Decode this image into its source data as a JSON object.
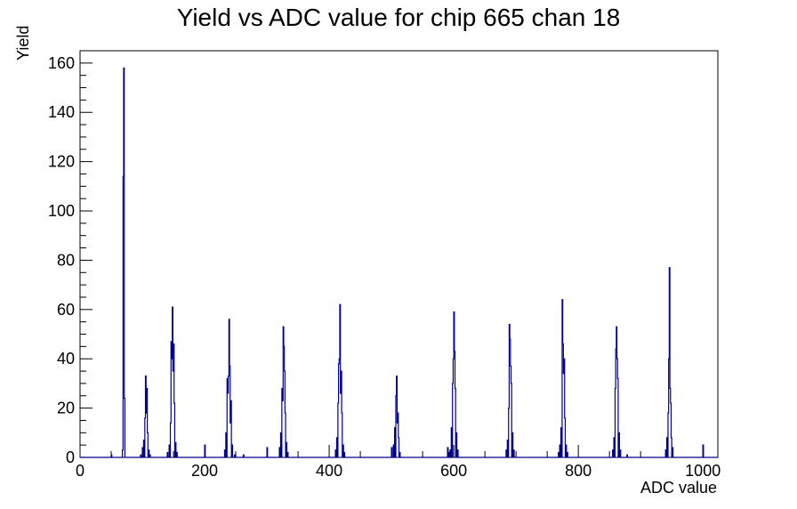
{
  "chart_data": {
    "type": "histogram",
    "title": "Yield vs ADC value for chip 665 chan 18",
    "xlabel": "ADC value",
    "ylabel": "Yield",
    "xlim": [
      0,
      1024
    ],
    "ylim": [
      0,
      165
    ],
    "x_ticks": [
      0,
      200,
      400,
      600,
      800,
      1000
    ],
    "y_ticks": [
      0,
      20,
      40,
      60,
      80,
      100,
      120,
      140,
      160
    ],
    "grid": false,
    "line_color": "#00008b",
    "bins": [
      {
        "x": 50,
        "y": 1
      },
      {
        "x": 68,
        "y": 3
      },
      {
        "x": 69,
        "y": 114
      },
      {
        "x": 70,
        "y": 158
      },
      {
        "x": 71,
        "y": 24
      },
      {
        "x": 97,
        "y": 1
      },
      {
        "x": 100,
        "y": 4
      },
      {
        "x": 102,
        "y": 7
      },
      {
        "x": 104,
        "y": 16
      },
      {
        "x": 105,
        "y": 33
      },
      {
        "x": 106,
        "y": 18
      },
      {
        "x": 107,
        "y": 28
      },
      {
        "x": 108,
        "y": 10
      },
      {
        "x": 110,
        "y": 3
      },
      {
        "x": 112,
        "y": 1
      },
      {
        "x": 140,
        "y": 2
      },
      {
        "x": 143,
        "y": 5
      },
      {
        "x": 145,
        "y": 14
      },
      {
        "x": 146,
        "y": 47
      },
      {
        "x": 147,
        "y": 40
      },
      {
        "x": 148,
        "y": 61
      },
      {
        "x": 149,
        "y": 35
      },
      {
        "x": 150,
        "y": 46
      },
      {
        "x": 151,
        "y": 22
      },
      {
        "x": 153,
        "y": 6
      },
      {
        "x": 155,
        "y": 2
      },
      {
        "x": 200,
        "y": 5
      },
      {
        "x": 232,
        "y": 3
      },
      {
        "x": 234,
        "y": 10
      },
      {
        "x": 236,
        "y": 32
      },
      {
        "x": 237,
        "y": 26
      },
      {
        "x": 238,
        "y": 33
      },
      {
        "x": 239,
        "y": 56
      },
      {
        "x": 240,
        "y": 37
      },
      {
        "x": 241,
        "y": 14
      },
      {
        "x": 242,
        "y": 23
      },
      {
        "x": 244,
        "y": 5
      },
      {
        "x": 248,
        "y": 1
      },
      {
        "x": 262,
        "y": 1
      },
      {
        "x": 300,
        "y": 4
      },
      {
        "x": 320,
        "y": 4
      },
      {
        "x": 322,
        "y": 10
      },
      {
        "x": 324,
        "y": 28
      },
      {
        "x": 325,
        "y": 23
      },
      {
        "x": 326,
        "y": 53
      },
      {
        "x": 327,
        "y": 45
      },
      {
        "x": 328,
        "y": 35
      },
      {
        "x": 329,
        "y": 18
      },
      {
        "x": 331,
        "y": 6
      },
      {
        "x": 333,
        "y": 2
      },
      {
        "x": 410,
        "y": 3
      },
      {
        "x": 412,
        "y": 8
      },
      {
        "x": 414,
        "y": 22
      },
      {
        "x": 415,
        "y": 38
      },
      {
        "x": 416,
        "y": 40
      },
      {
        "x": 417,
        "y": 62
      },
      {
        "x": 418,
        "y": 26
      },
      {
        "x": 419,
        "y": 35
      },
      {
        "x": 420,
        "y": 18
      },
      {
        "x": 422,
        "y": 5
      },
      {
        "x": 424,
        "y": 2
      },
      {
        "x": 500,
        "y": 4
      },
      {
        "x": 503,
        "y": 5
      },
      {
        "x": 505,
        "y": 12
      },
      {
        "x": 507,
        "y": 25
      },
      {
        "x": 508,
        "y": 33
      },
      {
        "x": 509,
        "y": 14
      },
      {
        "x": 510,
        "y": 18
      },
      {
        "x": 511,
        "y": 8
      },
      {
        "x": 513,
        "y": 2
      },
      {
        "x": 590,
        "y": 4
      },
      {
        "x": 592,
        "y": 2
      },
      {
        "x": 594,
        "y": 3
      },
      {
        "x": 596,
        "y": 12
      },
      {
        "x": 598,
        "y": 30
      },
      {
        "x": 599,
        "y": 40
      },
      {
        "x": 600,
        "y": 59
      },
      {
        "x": 601,
        "y": 43
      },
      {
        "x": 602,
        "y": 28
      },
      {
        "x": 604,
        "y": 10
      },
      {
        "x": 606,
        "y": 3
      },
      {
        "x": 684,
        "y": 3
      },
      {
        "x": 686,
        "y": 7
      },
      {
        "x": 688,
        "y": 20
      },
      {
        "x": 689,
        "y": 54
      },
      {
        "x": 690,
        "y": 48
      },
      {
        "x": 691,
        "y": 37
      },
      {
        "x": 692,
        "y": 30
      },
      {
        "x": 694,
        "y": 10
      },
      {
        "x": 696,
        "y": 3
      },
      {
        "x": 768,
        "y": 2
      },
      {
        "x": 770,
        "y": 5
      },
      {
        "x": 772,
        "y": 12
      },
      {
        "x": 774,
        "y": 64
      },
      {
        "x": 775,
        "y": 46
      },
      {
        "x": 776,
        "y": 34
      },
      {
        "x": 777,
        "y": 40
      },
      {
        "x": 778,
        "y": 16
      },
      {
        "x": 780,
        "y": 5
      },
      {
        "x": 782,
        "y": 2
      },
      {
        "x": 855,
        "y": 3
      },
      {
        "x": 857,
        "y": 8
      },
      {
        "x": 859,
        "y": 28
      },
      {
        "x": 860,
        "y": 44
      },
      {
        "x": 861,
        "y": 53
      },
      {
        "x": 862,
        "y": 40
      },
      {
        "x": 863,
        "y": 32
      },
      {
        "x": 865,
        "y": 10
      },
      {
        "x": 867,
        "y": 3
      },
      {
        "x": 878,
        "y": 1
      },
      {
        "x": 940,
        "y": 3
      },
      {
        "x": 942,
        "y": 8
      },
      {
        "x": 944,
        "y": 18
      },
      {
        "x": 945,
        "y": 40
      },
      {
        "x": 946,
        "y": 77
      },
      {
        "x": 947,
        "y": 28
      },
      {
        "x": 948,
        "y": 22
      },
      {
        "x": 949,
        "y": 8
      },
      {
        "x": 951,
        "y": 4
      },
      {
        "x": 1000,
        "y": 5
      }
    ]
  }
}
